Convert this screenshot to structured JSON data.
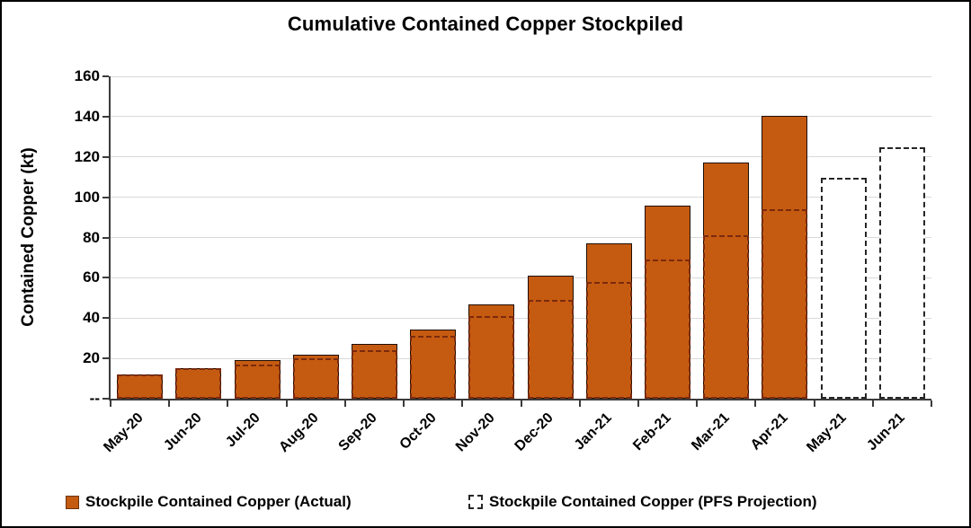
{
  "chart_data": {
    "type": "bar",
    "title": "Cumulative Contained Copper Stockpiled",
    "xlabel": "",
    "ylabel": "Contained Copper (kt)",
    "ylim": [
      0,
      160
    ],
    "ytick_step": 20,
    "grid": true,
    "legend_position": "bottom",
    "yticks": [
      {
        "value": 0,
        "label": "--"
      },
      {
        "value": 20,
        "label": "20"
      },
      {
        "value": 40,
        "label": "40"
      },
      {
        "value": 60,
        "label": "60"
      },
      {
        "value": 80,
        "label": "80"
      },
      {
        "value": 100,
        "label": "100"
      },
      {
        "value": 120,
        "label": "120"
      },
      {
        "value": 140,
        "label": "140"
      },
      {
        "value": 160,
        "label": "160"
      }
    ],
    "categories": [
      "May-20",
      "Jun-20",
      "Jul-20",
      "Aug-20",
      "Sep-20",
      "Oct-20",
      "Nov-20",
      "Dec-20",
      "Jan-21",
      "Feb-21",
      "Mar-21",
      "Apr-21",
      "May-21",
      "Jun-21"
    ],
    "series": [
      {
        "name": "Stockpile Contained Copper (Actual)",
        "style": "solid",
        "values": [
          12,
          15,
          19,
          22,
          27,
          34.5,
          47,
          61,
          77,
          96,
          117,
          140.5,
          null,
          null
        ]
      },
      {
        "name": "Stockpile Contained Copper (PFS Projection)",
        "style": "dashed",
        "values": [
          12,
          15,
          17,
          20,
          24,
          31,
          41,
          49,
          58,
          69,
          81,
          94,
          109.5,
          125
        ]
      }
    ],
    "colors": {
      "actual_fill": "#C55A11",
      "actual_border": "#1D0F03",
      "projection_dash_on_bar": "#7A2A0E",
      "projection_dash_standalone": "#262626",
      "projection_fill_standalone": "#FFFFFF",
      "gridline": "#D9D9D9",
      "axis": "#3B3B3B",
      "text": "#000000"
    }
  }
}
